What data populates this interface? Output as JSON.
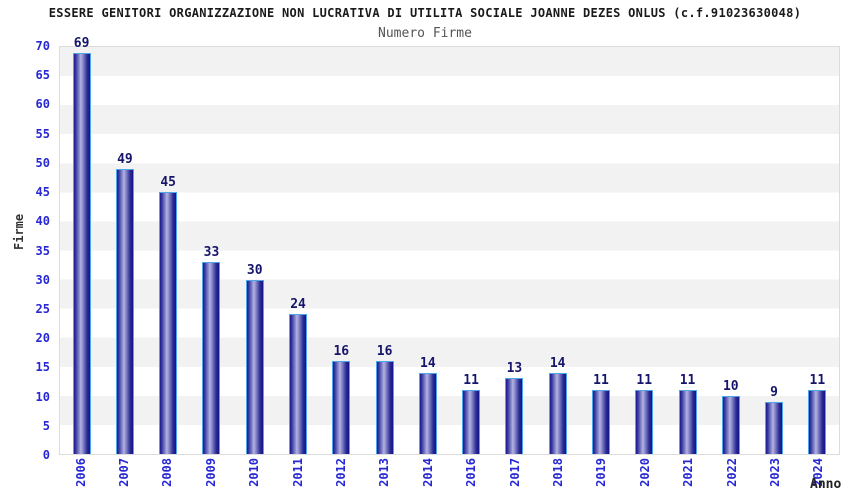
{
  "header": {
    "title": "ESSERE GENITORI ORGANIZZAZIONE NON LUCRATIVA DI UTILITA SOCIALE JOANNE DEZES ONLUS (c.f.91023630048)",
    "subtitle": "Numero Firme"
  },
  "chart_data": {
    "type": "bar",
    "title": "Numero Firme",
    "categories": [
      "2006",
      "2007",
      "2008",
      "2009",
      "2010",
      "2011",
      "2012",
      "2013",
      "2014",
      "2016",
      "2017",
      "2018",
      "2019",
      "2020",
      "2021",
      "2022",
      "2023",
      "2024"
    ],
    "values": [
      69,
      49,
      45,
      33,
      30,
      24,
      16,
      16,
      14,
      11,
      13,
      14,
      11,
      11,
      11,
      10,
      9,
      11
    ],
    "xlabel": "Anno",
    "ylabel": "Firme",
    "ylim": [
      0,
      70
    ],
    "ytick_step": 5,
    "yticks": [
      0,
      5,
      10,
      15,
      20,
      25,
      30,
      35,
      40,
      45,
      50,
      55,
      60,
      65,
      70
    ],
    "grid": "alternating-horizontal-bands",
    "legend": "none",
    "value_labels": "above-bars",
    "colors": {
      "bar_edge": "#4da6e8",
      "bar_dark": "#1b1b8e",
      "bar_light": "#b2b2e0",
      "tick_label": "#2727d4",
      "value_label": "#15156b",
      "band_gray": "#f2f2f2",
      "band_white": "#ffffff",
      "plot_border": "#dcdcdc",
      "title_color": "#1a1a1a",
      "subtitle_color": "#555555",
      "axis_title_color": "#333333"
    }
  }
}
